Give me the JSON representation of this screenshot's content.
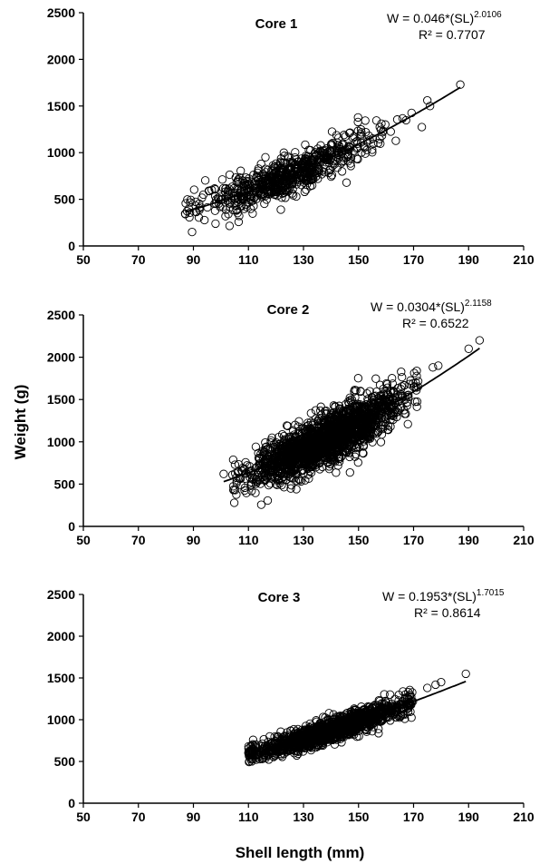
{
  "axis_titles": {
    "x": "Shell length (mm)",
    "y": "Weight (g)"
  },
  "chart_data": [
    {
      "type": "scatter",
      "title": "Core 1",
      "equation": {
        "prefix": "W = 0.046*(SL)",
        "exponent": "2.0106",
        "r2": "R² = 0.7707"
      },
      "fit": {
        "a": 0.046,
        "b": 2.0106,
        "x_range": [
          87,
          187
        ]
      },
      "x_ticks": [
        "50",
        "70",
        "90",
        "110",
        "130",
        "150",
        "170",
        "190",
        "210"
      ],
      "y_ticks": [
        "0",
        "500",
        "1000",
        "1500",
        "2000",
        "2500"
      ],
      "xlim": [
        50,
        210
      ],
      "ylim": [
        0,
        2500
      ],
      "x_range": [
        87,
        176
      ],
      "outliers": [
        [
          187,
          1730
        ],
        [
          175,
          1560
        ],
        [
          176,
          1500
        ],
        [
          87,
          345
        ]
      ],
      "scatter": {
        "center_x": 125,
        "sd_x": 16,
        "sd_y": 100,
        "n": 700,
        "marker": "open-circle"
      }
    },
    {
      "type": "scatter",
      "title": "Core 2",
      "equation": {
        "prefix": "W = 0.0304*(SL)",
        "exponent": "2.1158",
        "r2": "R² = 0.6522"
      },
      "fit": {
        "a": 0.0304,
        "b": 2.1158,
        "x_range": [
          101,
          194
        ]
      },
      "x_ticks": [
        "50",
        "70",
        "90",
        "110",
        "130",
        "150",
        "170",
        "190",
        "210"
      ],
      "y_ticks": [
        "0",
        "500",
        "1000",
        "1500",
        "2000",
        "2500"
      ],
      "xlim": [
        50,
        210
      ],
      "ylim": [
        0,
        2500
      ],
      "x_range": [
        104,
        172
      ],
      "outliers": [
        [
          194,
          2200
        ],
        [
          190,
          2100
        ],
        [
          179,
          1900
        ],
        [
          177,
          1880
        ],
        [
          101,
          620
        ],
        [
          107,
          570
        ]
      ],
      "scatter": {
        "center_x": 138,
        "sd_x": 13,
        "sd_y": 145,
        "n": 2000,
        "marker": "open-circle"
      }
    },
    {
      "type": "scatter",
      "title": "Core 3",
      "equation": {
        "prefix": "W = 0.1953*(SL)",
        "exponent": "1.7015",
        "r2": "R² = 0.8614"
      },
      "fit": {
        "a": 0.1953,
        "b": 1.7015,
        "x_range": [
          110,
          189
        ]
      },
      "x_ticks": [
        "50",
        "70",
        "90",
        "110",
        "130",
        "150",
        "170",
        "190",
        "210"
      ],
      "y_ticks": [
        "0",
        "500",
        "1000",
        "1500",
        "2000",
        "2500"
      ],
      "xlim": [
        50,
        210
      ],
      "ylim": [
        0,
        2500
      ],
      "x_range": [
        110,
        170
      ],
      "outliers": [
        [
          189,
          1550
        ],
        [
          180,
          1450
        ],
        [
          178,
          1420
        ],
        [
          175,
          1380
        ],
        [
          110,
          680
        ],
        [
          110,
          600
        ]
      ],
      "scatter": {
        "center_x": 140,
        "sd_x": 14,
        "sd_y": 65,
        "n": 1500,
        "marker": "open-circle"
      }
    }
  ]
}
